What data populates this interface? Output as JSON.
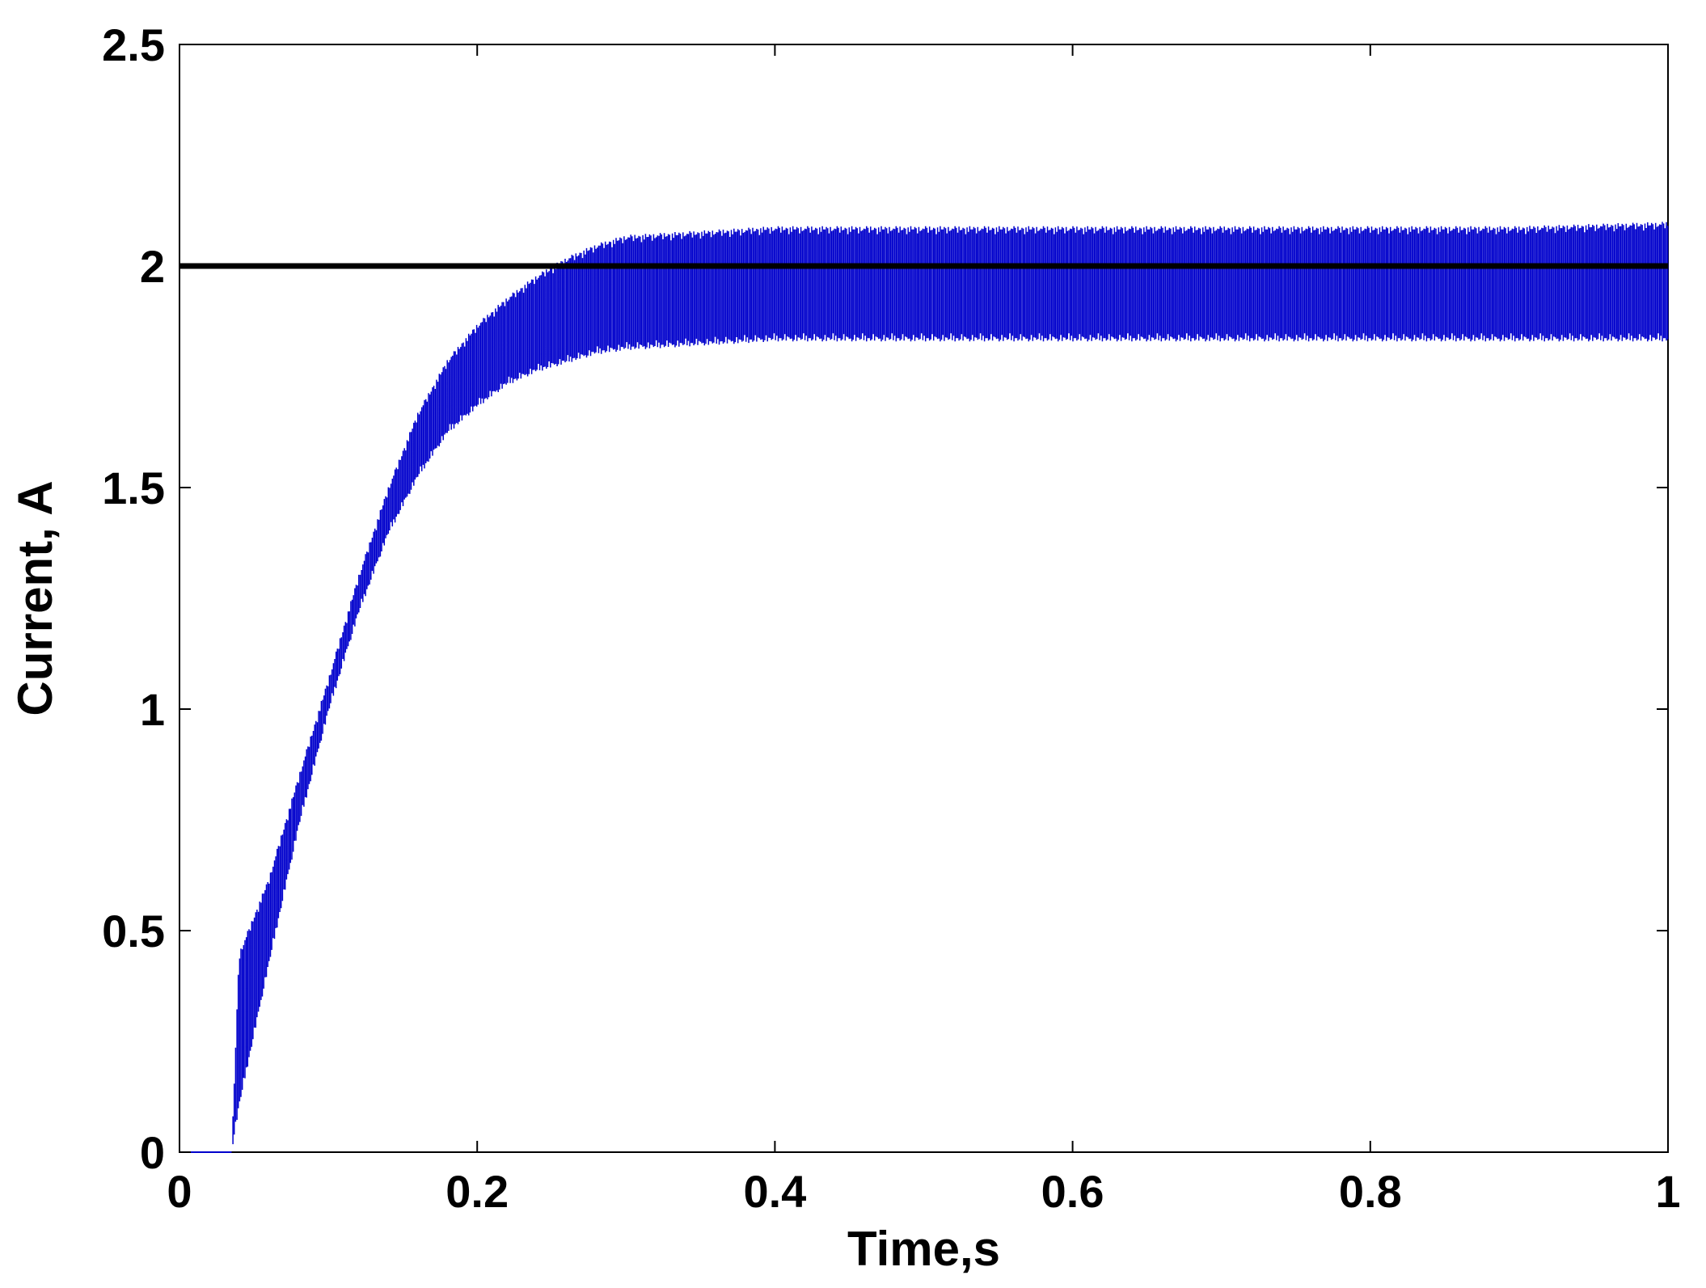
{
  "chart_data": {
    "type": "line",
    "title": "",
    "xlabel": "Time,s",
    "ylabel": "Current, A",
    "xlim": [
      0,
      1
    ],
    "ylim": [
      0,
      2.5
    ],
    "x_ticks": [
      0,
      0.2,
      0.4,
      0.6,
      0.8,
      1
    ],
    "x_tick_labels": [
      "0",
      "0.2",
      "0.4",
      "0.6",
      "0.8",
      "1"
    ],
    "y_ticks": [
      0,
      0.5,
      1,
      1.5,
      2,
      2.5
    ],
    "y_tick_labels": [
      "0",
      "0.5",
      "1",
      "1.5",
      "2",
      "2.5"
    ],
    "grid": false,
    "legend": "none",
    "series": [
      {
        "style": "solid",
        "color": "#000000",
        "x": [
          0,
          1
        ],
        "y": [
          2.0,
          2.0
        ]
      },
      {
        "style": "switching-ripple",
        "color": "#0000cc",
        "start_time": 0.035,
        "upper_x": [
          0.035,
          0.04,
          0.06,
          0.08,
          0.1,
          0.12,
          0.14,
          0.16,
          0.18,
          0.2,
          0.22,
          0.24,
          0.26,
          0.28,
          0.3,
          0.35,
          0.4,
          0.5,
          0.6,
          0.7,
          0.8,
          0.9,
          1.0
        ],
        "upper_y": [
          0.0,
          0.45,
          0.62,
          0.85,
          1.07,
          1.3,
          1.5,
          1.67,
          1.79,
          1.87,
          1.93,
          1.98,
          2.02,
          2.05,
          2.07,
          2.08,
          2.09,
          2.09,
          2.09,
          2.09,
          2.09,
          2.09,
          2.1
        ],
        "lower_x": [
          0.035,
          0.04,
          0.06,
          0.08,
          0.1,
          0.12,
          0.14,
          0.16,
          0.18,
          0.2,
          0.22,
          0.24,
          0.26,
          0.28,
          0.3,
          0.35,
          0.4,
          0.5,
          0.6,
          0.7,
          0.8,
          0.9,
          1.0
        ],
        "lower_y": [
          0.0,
          0.1,
          0.42,
          0.73,
          0.99,
          1.21,
          1.39,
          1.52,
          1.62,
          1.68,
          1.73,
          1.76,
          1.78,
          1.8,
          1.81,
          1.82,
          1.83,
          1.83,
          1.83,
          1.83,
          1.83,
          1.83,
          1.83
        ]
      }
    ]
  }
}
